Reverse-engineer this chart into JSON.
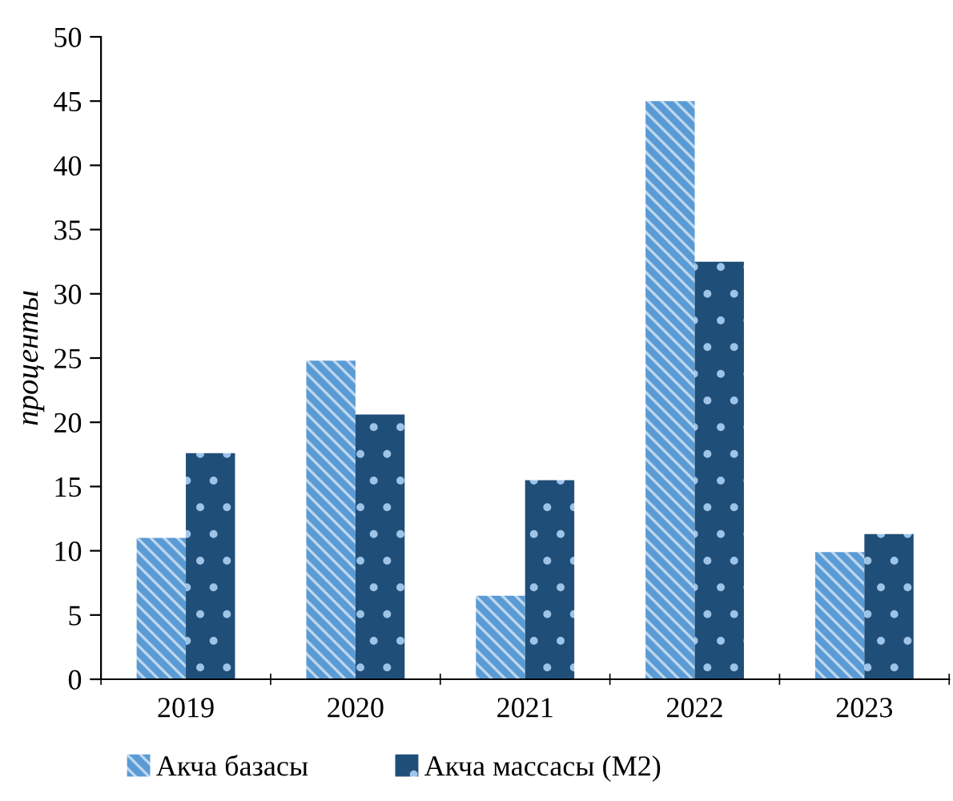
{
  "chart_data": {
    "type": "bar",
    "ylabel": "проценты",
    "categories": [
      "2019",
      "2020",
      "2021",
      "2022",
      "2023"
    ],
    "series": [
      {
        "name": "Акча базасы",
        "color": "#5b9bd5",
        "values": [
          11.0,
          24.8,
          6.5,
          45.0,
          9.9
        ]
      },
      {
        "name": "Акча массасы (M2)",
        "color": "#1f4e79",
        "values": [
          17.6,
          20.6,
          15.5,
          32.5,
          11.3
        ]
      }
    ],
    "ylim": [
      0,
      50
    ],
    "yticks": [
      0,
      5,
      10,
      15,
      20,
      25,
      30,
      35,
      40,
      45,
      50
    ],
    "grid": false,
    "legend": "bottom"
  }
}
